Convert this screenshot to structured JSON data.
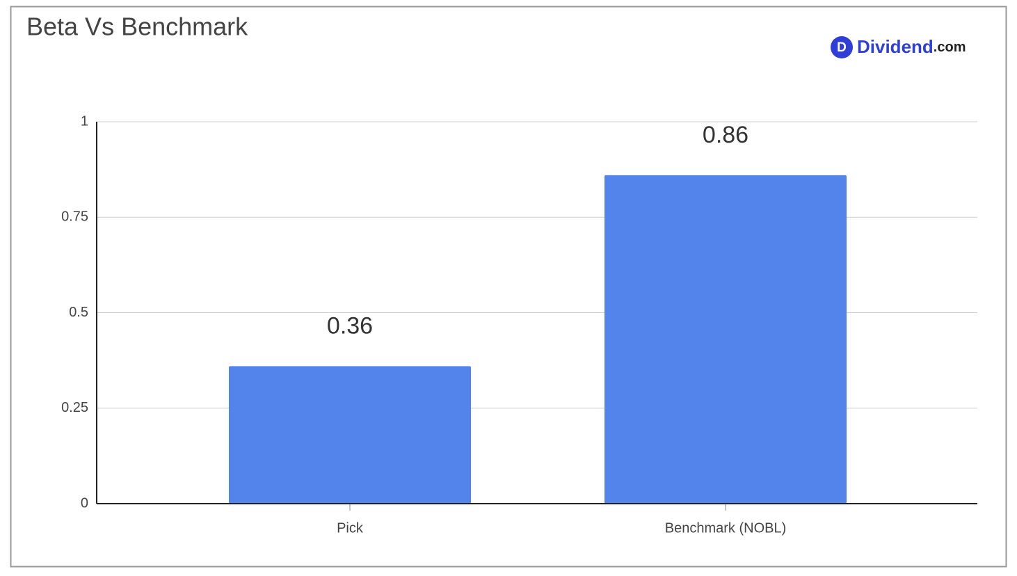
{
  "chart_data": {
    "type": "bar",
    "title": "Beta Vs Benchmark",
    "categories": [
      "Pick",
      "Benchmark (NOBL)"
    ],
    "values": [
      0.36,
      0.86
    ],
    "color": "#5284eb",
    "ylim": [
      0,
      1
    ],
    "yticks": [
      0,
      0.25,
      0.5,
      0.75,
      1
    ],
    "grid": true
  },
  "logo": {
    "icon": "D",
    "name": "Dividend",
    "suffix": ".com"
  }
}
